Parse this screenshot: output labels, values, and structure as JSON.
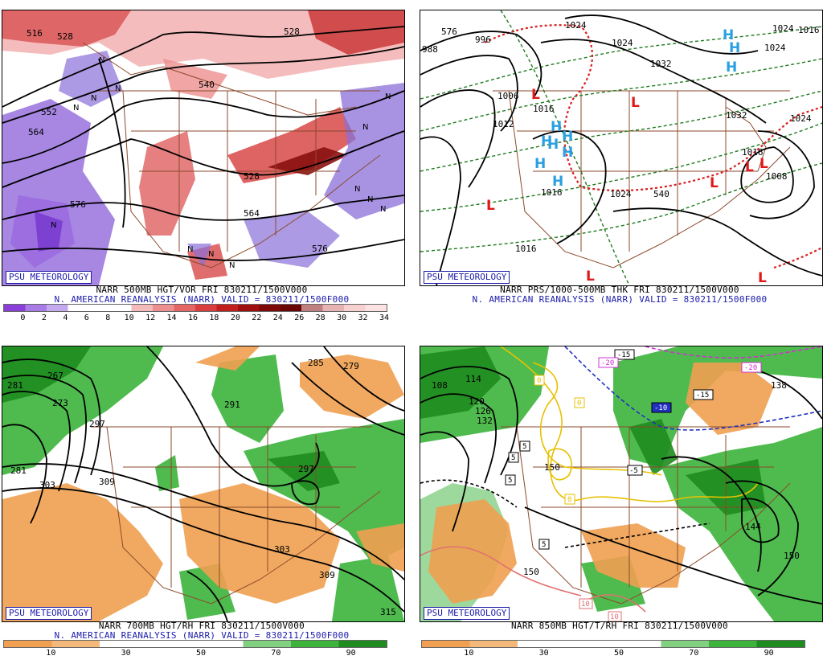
{
  "panels": [
    {
      "id": "tl",
      "badge": "PSU METEOROLOGY",
      "title": "NARR 500MB HGT/VOR FRI 830211/1500V000",
      "subtitle": "N. AMERICAN REANALYSIS (NARR) VALID = 830211/1500F000",
      "colorbar": {
        "colors": [
          "#8a3fd8",
          "#a87be6",
          "#c3a9ee",
          "#ffffff",
          "#ffffff",
          "#ffffff",
          "#f4b9b9",
          "#ee8f8f",
          "#e56565",
          "#d83e3e",
          "#c21e1e",
          "#a00f0f",
          "#7f0808",
          "#6a0505",
          "#c07f7f",
          "#e6b3b3",
          "#f7d0d0",
          "#fbe3e3"
        ],
        "labels": [
          "0",
          "2",
          "4",
          "6",
          "8",
          "10",
          "12",
          "14",
          "16",
          "18",
          "20",
          "22",
          "24",
          "26",
          "28",
          "30",
          "32",
          "34"
        ]
      },
      "map_labels": [
        "516",
        "528",
        "528",
        "540",
        "552",
        "564",
        "576",
        "576",
        "564",
        "528"
      ],
      "centers": [
        "N",
        "N",
        "N",
        "N",
        "N",
        "N",
        "N",
        "N",
        "N",
        "N",
        "N",
        "N",
        "N"
      ]
    },
    {
      "id": "tr",
      "badge": "PSU METEOROLOGY",
      "title": "NARR PRS/1000-500MB THK FRI 830211/1500V000",
      "subtitle": "N. AMERICAN REANALYSIS (NARR) VALID = 830211/1500F000",
      "map_labels": [
        "988",
        "576",
        "996",
        "1006",
        "1012",
        "1024",
        "1032",
        "1024",
        "1024",
        "1032",
        "1016",
        "1024",
        "1024",
        "540",
        "1016",
        "1016",
        "1016",
        "1008",
        "1024",
        "1016"
      ],
      "highs": [
        "H",
        "H",
        "H",
        "H",
        "H",
        "H",
        "H",
        "H",
        "H",
        "H"
      ],
      "lows": [
        "L",
        "L",
        "L",
        "L",
        "L",
        "L",
        "L",
        "L"
      ]
    },
    {
      "id": "bl",
      "badge": "PSU METEOROLOGY",
      "title": "NARR 700MB HGT/RH FRI 830211/1500V000",
      "subtitle": "N. AMERICAN REANALYSIS (NARR) VALID = 830211/1500F000",
      "colorbar": {
        "colors": [
          "#f0a050",
          "#f4b87a",
          "#ffffff",
          "#ffffff",
          "#ffffff",
          "#80d080",
          "#3cb43c",
          "#1e8c1e"
        ],
        "labels": [
          "10",
          "30",
          "50",
          "70",
          "90"
        ]
      },
      "map_labels": [
        "285",
        "279",
        "267",
        "281",
        "273",
        "297",
        "291",
        "281",
        "303",
        "309",
        "297",
        "303",
        "309",
        "315"
      ]
    },
    {
      "id": "br",
      "badge": "PSU METEOROLOGY",
      "title": "NARR 850MB HGT/T/RH FRI 830211/1500V000",
      "colorbar": {
        "colors": [
          "#f0a050",
          "#f4b87a",
          "#ffffff",
          "#ffffff",
          "#ffffff",
          "#80d080",
          "#3cb43c",
          "#1e8c1e"
        ],
        "labels": [
          "10",
          "30",
          "50",
          "70",
          "90"
        ]
      },
      "map_labels": [
        "108",
        "114",
        "120",
        "126",
        "132",
        "138",
        "144",
        "150",
        "150",
        "150"
      ],
      "temp_labels": [
        "-15",
        "-20",
        "-20",
        "-15",
        "-10",
        "-5",
        "0",
        "0",
        "0",
        "5",
        "5",
        "5",
        "5",
        "10",
        "10"
      ]
    }
  ]
}
